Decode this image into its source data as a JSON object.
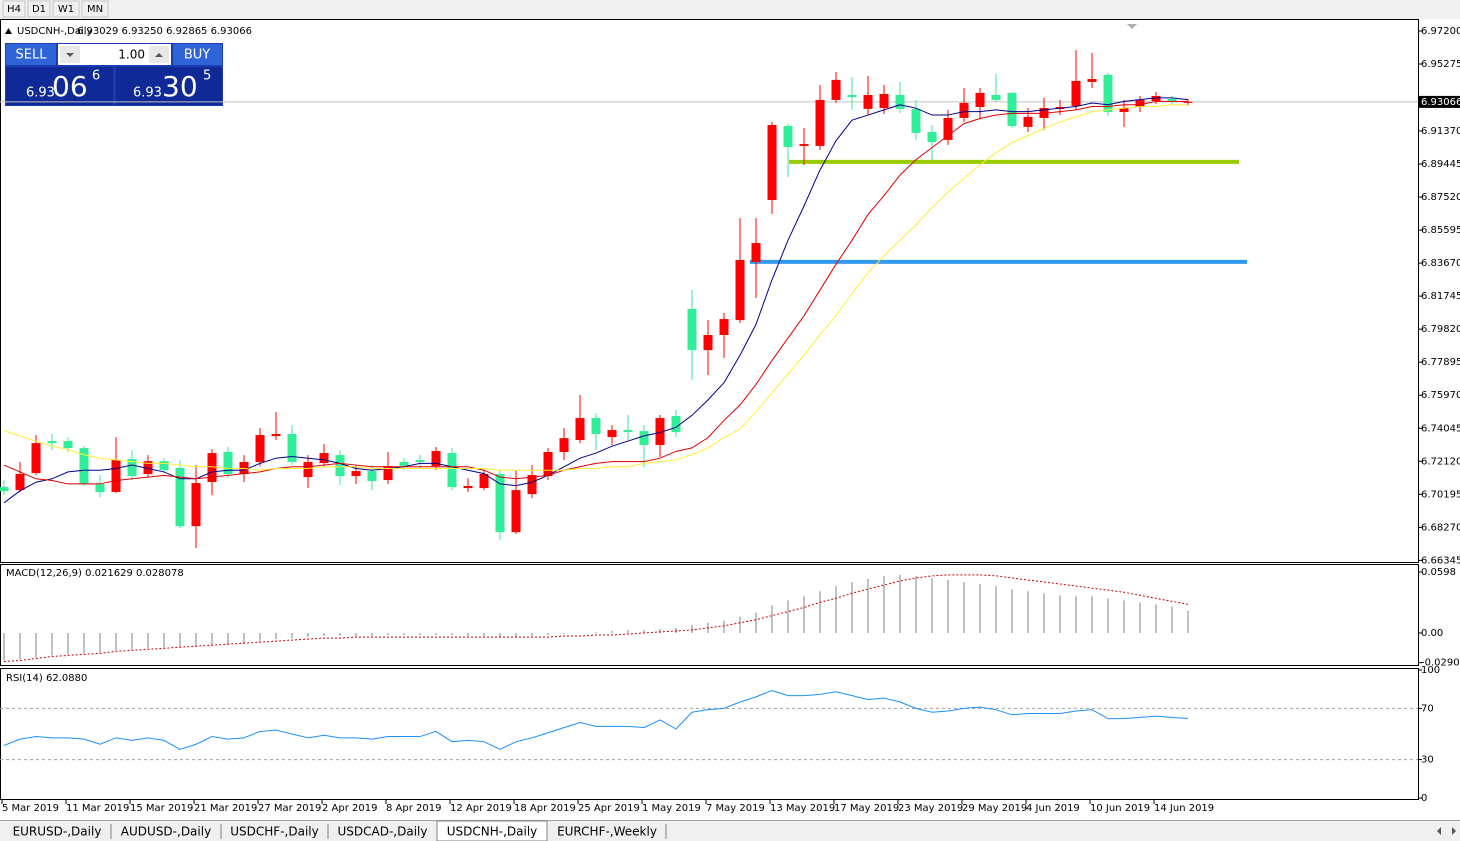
{
  "toolbar": [
    "H4",
    "D1",
    "W1",
    "MN"
  ],
  "trade_panel": {
    "sell": "SELL",
    "buy": "BUY",
    "lots": "1.00",
    "bid": {
      "big": "6.93",
      "main": "06",
      "sup": "6"
    },
    "ask": {
      "big": "6.93",
      "main": "30",
      "sup": "5"
    }
  },
  "tabs": [
    "EURUSD-,Daily",
    "AUDUSD-,Daily",
    "USDCHF-,Daily",
    "USDCAD-,Daily",
    "USDCNH-,Daily",
    "EURCHF-,Weekly"
  ],
  "active_tab": 4,
  "chart_data": [
    {
      "type": "candlestick",
      "title": "USDCNH-,Daily",
      "ohlc_label": "6.93029 6.93250 6.92865 6.93066",
      "up_color": "#ff0000",
      "down_color": "#33ee99",
      "categories": [
        "5 Mar 2019",
        null,
        null,
        null,
        "11 Mar 2019",
        null,
        null,
        null,
        "15 Mar 2019",
        null,
        null,
        null,
        "21 Mar 2019",
        null,
        null,
        null,
        "27 Mar 2019",
        null,
        null,
        null,
        "2 Apr 2019",
        null,
        null,
        null,
        "8 Apr 2019",
        null,
        null,
        null,
        "12 Apr 2019",
        null,
        null,
        null,
        "18 Apr 2019",
        null,
        null,
        null,
        "25 Apr 2019",
        null,
        null,
        null,
        "1 May 2019",
        null,
        null,
        null,
        "7 May 2019",
        null,
        null,
        null,
        "13 May 2019",
        null,
        null,
        null,
        "17 May 2019",
        null,
        null,
        null,
        "23 May 2019",
        null,
        null,
        null,
        "29 May 2019",
        null,
        null,
        null,
        "4 Jun 2019",
        null,
        null,
        null,
        "10 Jun 2019",
        null,
        null,
        null,
        "14 Jun 2019",
        null,
        null
      ],
      "open": [
        6.7062,
        6.7044,
        6.7143,
        6.733,
        6.733,
        6.7289,
        6.7079,
        6.7033,
        6.7225,
        6.7138,
        6.7213,
        6.7173,
        6.6834,
        6.7091,
        6.7266,
        6.7138,
        6.7208,
        6.7359,
        6.7371,
        6.712,
        6.7202,
        6.7248,
        6.7126,
        6.7155,
        6.7103,
        6.7208,
        6.7219,
        6.7184,
        6.726,
        6.7056,
        6.7056,
        6.7138,
        6.6799,
        6.7021,
        6.7126,
        6.7266,
        6.7336,
        6.7464,
        6.7353,
        6.7394,
        6.7388,
        6.7307,
        6.7476,
        6.81,
        6.786,
        6.7948,
        6.8035,
        6.8374,
        6.8735,
        6.9166,
        6.905,
        6.905,
        6.9318,
        6.9347,
        6.9266,
        6.9271,
        6.9347,
        6.9266,
        6.9131,
        6.9085,
        6.9213,
        6.9277,
        6.9347,
        6.9359,
        6.9161,
        6.9213,
        6.9266,
        6.9283,
        6.9423,
        6.9464,
        6.9248,
        6.9277,
        6.9312,
        6.9324,
        6.93029
      ],
      "high": [
        6.7103,
        6.7208,
        6.7365,
        6.7371,
        6.7353,
        6.7301,
        6.7132,
        6.7353,
        6.7277,
        6.7248,
        6.7231,
        6.7219,
        6.719,
        6.7283,
        6.7295,
        6.7248,
        6.7406,
        6.7499,
        6.7423,
        6.7248,
        6.7312,
        6.7277,
        6.719,
        6.719,
        6.7266,
        6.7231,
        6.7248,
        6.7295,
        6.7289,
        6.7114,
        6.7161,
        6.7161,
        6.7161,
        6.719,
        6.7289,
        6.7406,
        6.7598,
        6.7493,
        6.7423,
        6.7482,
        6.7423,
        6.7482,
        6.7511,
        6.821,
        6.8035,
        6.8076,
        6.863,
        6.863,
        6.919,
        6.9178,
        6.9155,
        6.9405,
        6.9481,
        6.9452,
        6.9458,
        6.9405,
        6.9423,
        6.9318,
        6.9172,
        6.926,
        6.9388,
        6.9388,
        6.947,
        6.9365,
        6.9271,
        6.933,
        6.9318,
        6.9609,
        6.9592,
        6.9475,
        6.9318,
        6.9341,
        6.9365,
        6.9341,
        6.9325
      ],
      "low": [
        6.7015,
        6.7033,
        6.7132,
        6.7277,
        6.7266,
        6.7068,
        6.7003,
        6.7027,
        6.7103,
        6.712,
        6.7149,
        6.6823,
        6.6706,
        6.7015,
        6.7114,
        6.7091,
        6.7184,
        6.7336,
        6.719,
        6.7056,
        6.7178,
        6.7073,
        6.7079,
        6.7044,
        6.7079,
        6.7161,
        6.7173,
        6.7161,
        6.7044,
        6.7033,
        6.7044,
        6.6753,
        6.6788,
        6.6998,
        6.7103,
        6.7219,
        6.7318,
        6.7277,
        6.7307,
        6.7336,
        6.7178,
        6.7237,
        6.7353,
        6.7686,
        6.7715,
        6.7814,
        6.8018,
        6.8164,
        6.8653,
        6.8869,
        6.8939,
        6.9026,
        6.9301,
        6.926,
        6.9231,
        6.9236,
        6.9242,
        6.9085,
        6.8968,
        6.9056,
        6.919,
        6.9213,
        6.9306,
        6.9155,
        6.9131,
        6.9143,
        6.9231,
        6.926,
        6.9388,
        6.9225,
        6.9161,
        6.9248,
        6.9295,
        6.9289,
        6.92865
      ],
      "close": [
        6.7038,
        6.7138,
        6.7318,
        6.7318,
        6.7289,
        6.7079,
        6.7033,
        6.7219,
        6.7126,
        6.7213,
        6.7161,
        6.6834,
        6.7085,
        6.726,
        6.7138,
        6.7208,
        6.7365,
        6.7371,
        6.7208,
        6.7208,
        6.726,
        6.7126,
        6.7155,
        6.7097,
        6.7184,
        6.7184,
        6.7208,
        6.7272,
        6.7062,
        6.7068,
        6.7138,
        6.6799,
        6.7044,
        6.7132,
        6.7266,
        6.7347,
        6.7464,
        6.7371,
        6.7394,
        6.7382,
        6.7307,
        6.7464,
        6.7382,
        6.786,
        6.7948,
        6.8041,
        6.8385,
        6.8484,
        6.9172,
        6.9044,
        6.9061,
        6.9318,
        6.9435,
        6.9335,
        6.9347,
        6.9353,
        6.9266,
        6.9126,
        6.9073,
        6.9213,
        6.9301,
        6.9359,
        6.9318,
        6.9166,
        6.9219,
        6.9271,
        6.9277,
        6.9429,
        6.944,
        6.9248,
        6.9271,
        6.9318,
        6.9341,
        6.9306,
        6.93066
      ],
      "series": [
        {
          "color": "#00008b",
          "values": [
            6.697,
            6.704,
            6.709,
            6.711,
            6.715,
            6.716,
            6.716,
            6.717,
            6.719,
            6.717,
            6.715,
            6.711,
            6.711,
            6.715,
            6.716,
            6.716,
            6.72,
            6.723,
            6.724,
            6.723,
            6.722,
            6.72,
            6.717,
            6.716,
            6.717,
            6.718,
            6.72,
            6.72,
            6.718,
            6.716,
            6.714,
            6.708,
            6.707,
            6.709,
            6.713,
            6.718,
            6.723,
            6.726,
            6.73,
            6.733,
            6.736,
            6.738,
            6.741,
            6.748,
            6.757,
            6.767,
            6.783,
            6.801,
            6.827,
            6.85,
            6.87,
            6.891,
            6.908,
            6.92,
            6.923,
            6.926,
            6.929,
            6.927,
            6.923,
            6.923,
            6.925,
            6.925,
            6.926,
            6.925,
            6.925,
            6.926,
            6.927,
            6.928,
            6.93,
            6.929,
            6.931,
            6.932,
            6.933,
            6.933,
            6.932
          ]
        },
        {
          "color": "#e00000",
          "values": [
            6.719,
            6.715,
            6.711,
            6.71,
            6.708,
            6.708,
            6.708,
            6.71,
            6.711,
            6.712,
            6.713,
            6.712,
            6.711,
            6.712,
            6.713,
            6.714,
            6.715,
            6.717,
            6.718,
            6.718,
            6.719,
            6.72,
            6.719,
            6.718,
            6.718,
            6.718,
            6.718,
            6.718,
            6.718,
            6.718,
            6.716,
            6.712,
            6.711,
            6.712,
            6.713,
            6.716,
            6.718,
            6.72,
            6.721,
            6.721,
            6.721,
            6.723,
            6.727,
            6.729,
            6.735,
            6.745,
            6.754,
            6.766,
            6.78,
            6.793,
            6.806,
            6.821,
            6.836,
            6.85,
            6.865,
            6.876,
            6.888,
            6.897,
            6.904,
            6.911,
            6.918,
            6.921,
            6.923,
            6.924,
            6.924,
            6.924,
            6.925,
            6.926,
            6.928,
            6.928,
            6.929,
            6.929,
            6.931,
            6.931,
            6.931
          ]
        },
        {
          "color": "#ffee33",
          "values": [
            6.739,
            6.736,
            6.733,
            6.73,
            6.728,
            6.725,
            6.723,
            6.722,
            6.721,
            6.72,
            6.72,
            6.719,
            6.718,
            6.718,
            6.717,
            6.717,
            6.716,
            6.717,
            6.717,
            6.717,
            6.718,
            6.718,
            6.718,
            6.717,
            6.717,
            6.717,
            6.717,
            6.717,
            6.717,
            6.717,
            6.717,
            6.716,
            6.716,
            6.716,
            6.716,
            6.716,
            6.717,
            6.717,
            6.718,
            6.718,
            6.72,
            6.721,
            6.722,
            6.725,
            6.729,
            6.735,
            6.74,
            6.75,
            6.761,
            6.772,
            6.783,
            6.795,
            6.806,
            6.819,
            6.831,
            6.841,
            6.85,
            6.859,
            6.869,
            6.878,
            6.886,
            6.894,
            6.901,
            6.907,
            6.911,
            6.915,
            6.919,
            6.922,
            6.925,
            6.926,
            6.927,
            6.928,
            6.928,
            6.929,
            6.929
          ]
        }
      ],
      "levels": [
        {
          "value": 6.8957,
          "color": "#99cc00"
        },
        {
          "value": 6.8374,
          "color": "#3399ee"
        }
      ],
      "last_price": {
        "value": 6.93066,
        "label": "6.93066"
      },
      "ylim": [
        6.6625,
        6.9784
      ],
      "yticks": [
        {
          "value": 6.972,
          "label": "6.97200"
        },
        {
          "value": 6.95275,
          "label": "6.95275"
        },
        {
          "value": 6.9137,
          "label": "6.91370"
        },
        {
          "value": 6.89445,
          "label": "6.89445"
        },
        {
          "value": 6.8752,
          "label": "6.87520"
        },
        {
          "value": 6.85595,
          "label": "6.85595"
        },
        {
          "value": 6.8367,
          "label": "6.83670"
        },
        {
          "value": 6.81745,
          "label": "6.81745"
        },
        {
          "value": 6.7982,
          "label": "6.79820"
        },
        {
          "value": 6.77895,
          "label": "6.77895"
        },
        {
          "value": 6.7597,
          "label": "6.75970"
        },
        {
          "value": 6.74045,
          "label": "6.74045"
        },
        {
          "value": 6.7212,
          "label": "6.72120"
        },
        {
          "value": 6.70195,
          "label": "6.70195"
        },
        {
          "value": 6.6827,
          "label": "6.68270"
        },
        {
          "value": 6.66345,
          "label": "6.66345"
        }
      ]
    },
    {
      "type": "macd",
      "title": "MACD(12,26,9) 0.021629 0.028078",
      "series": [
        {
          "style": "histogram",
          "color": "#c0c0c0",
          "values": [
            -0.027,
            -0.026,
            -0.024,
            -0.022,
            -0.021,
            -0.02,
            -0.019,
            -0.017,
            -0.016,
            -0.015,
            -0.014,
            -0.014,
            -0.013,
            -0.012,
            -0.011,
            -0.01,
            -0.008,
            -0.006,
            -0.005,
            -0.004,
            -0.003,
            -0.003,
            -0.003,
            -0.003,
            -0.002,
            -0.002,
            -0.002,
            -0.002,
            -0.002,
            -0.003,
            -0.003,
            -0.004,
            -0.004,
            -0.003,
            -0.002,
            -0.001,
            0.0,
            0.001,
            0.002,
            0.003,
            0.003,
            0.004,
            0.005,
            0.008,
            0.01,
            0.012,
            0.016,
            0.02,
            0.027,
            0.032,
            0.036,
            0.041,
            0.046,
            0.05,
            0.053,
            0.056,
            0.057,
            0.056,
            0.054,
            0.052,
            0.05,
            0.048,
            0.046,
            0.043,
            0.041,
            0.039,
            0.037,
            0.036,
            0.036,
            0.034,
            0.032,
            0.03,
            0.028,
            0.026,
            0.021629
          ]
        },
        {
          "style": "dotted",
          "color": "#cc0000",
          "values": [
            -0.028,
            -0.027,
            -0.025,
            -0.023,
            -0.022,
            -0.021,
            -0.02,
            -0.018,
            -0.017,
            -0.016,
            -0.015,
            -0.014,
            -0.013,
            -0.012,
            -0.011,
            -0.01,
            -0.009,
            -0.008,
            -0.007,
            -0.006,
            -0.005,
            -0.005,
            -0.004,
            -0.004,
            -0.004,
            -0.004,
            -0.004,
            -0.004,
            -0.004,
            -0.004,
            -0.004,
            -0.004,
            -0.004,
            -0.004,
            -0.004,
            -0.003,
            -0.003,
            -0.002,
            -0.002,
            -0.001,
            0.0,
            0.001,
            0.002,
            0.003,
            0.005,
            0.007,
            0.01,
            0.013,
            0.017,
            0.021,
            0.025,
            0.03,
            0.034,
            0.039,
            0.043,
            0.047,
            0.051,
            0.054,
            0.056,
            0.057,
            0.057,
            0.057,
            0.056,
            0.054,
            0.052,
            0.05,
            0.048,
            0.046,
            0.044,
            0.042,
            0.04,
            0.037,
            0.034,
            0.031,
            0.028078
          ]
        }
      ],
      "ylim": [
        -0.0314,
        0.0657
      ],
      "yticks": [
        0.0598,
        {
          "value": 0,
          "label": "0.00"
        },
        -0.029049
      ]
    },
    {
      "type": "line",
      "title": "RSI(14) 62.0880",
      "color": "#1e90ff",
      "values": [
        41,
        46,
        48,
        47,
        47,
        46,
        42,
        47,
        45,
        47,
        45,
        38,
        42,
        48,
        46,
        47,
        52,
        53,
        50,
        47,
        49,
        47,
        47,
        46,
        48,
        48,
        48,
        52,
        44,
        45,
        44,
        38,
        44,
        47,
        51,
        55,
        59,
        56,
        56,
        56,
        55,
        61,
        54,
        67,
        69,
        70,
        75,
        79,
        84,
        80,
        80,
        81,
        83,
        80,
        77,
        78,
        75,
        70,
        67,
        68,
        70,
        71,
        69,
        65,
        66,
        66,
        66,
        68,
        69,
        62,
        62,
        63,
        64,
        63,
        62.088
      ],
      "levels": [
        70,
        30
      ],
      "ylim": [
        0,
        100
      ],
      "yticks": [
        100,
        70,
        30,
        0
      ]
    }
  ]
}
